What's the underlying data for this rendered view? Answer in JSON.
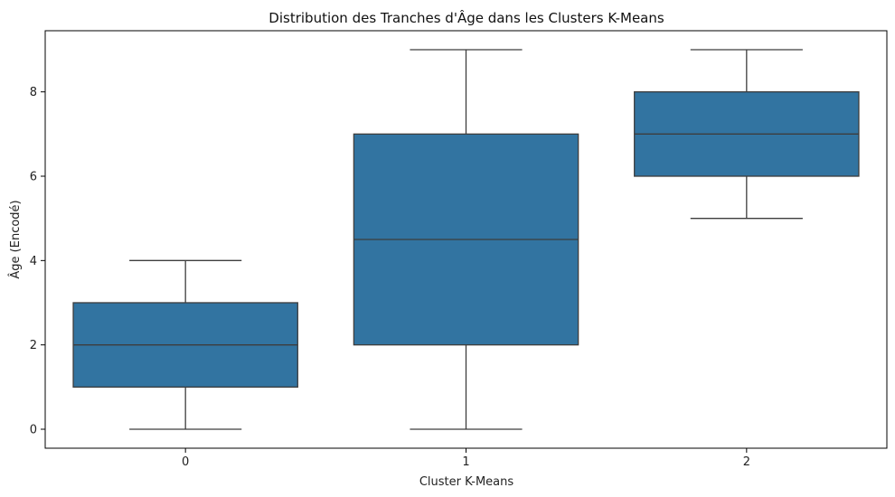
{
  "chart_data": {
    "type": "box",
    "title": "Distribution des Tranches d'Âge dans les Clusters K-Means",
    "xlabel": "Cluster K-Means",
    "ylabel": "Âge (Encodé)",
    "categories": [
      "0",
      "1",
      "2"
    ],
    "boxes": [
      {
        "category": "0",
        "whisker_low": 0,
        "q1": 1,
        "median": 2,
        "q3": 3,
        "whisker_high": 4
      },
      {
        "category": "1",
        "whisker_low": 0,
        "q1": 2,
        "median": 4.5,
        "q3": 7,
        "whisker_high": 9
      },
      {
        "category": "2",
        "whisker_low": 5,
        "q1": 6,
        "median": 7,
        "q3": 8,
        "whisker_high": 9
      }
    ],
    "y_ticks": [
      "0",
      "2",
      "4",
      "6",
      "8"
    ],
    "ylim": [
      -0.45,
      9.45
    ],
    "grid": false,
    "colors": {
      "box_fill": "#3274a1",
      "line": "#3d3d3d",
      "axis": "#000000"
    }
  }
}
